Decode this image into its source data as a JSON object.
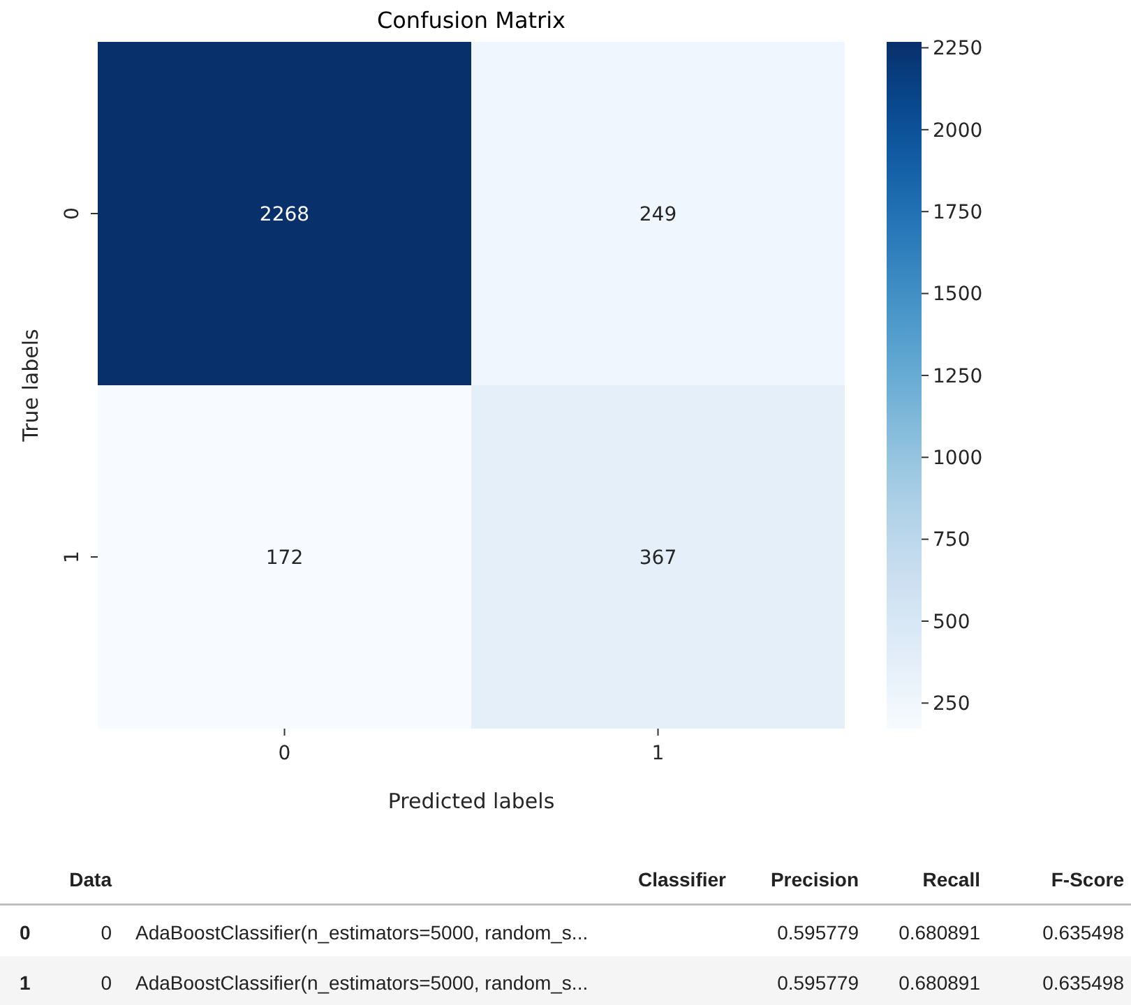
{
  "chart_data": [
    {
      "type": "heatmap",
      "title": "Confusion Matrix",
      "xlabel": "Predicted labels",
      "ylabel": "True labels",
      "categories": [
        "0",
        "1"
      ],
      "y_categories": [
        "0",
        "1"
      ],
      "cells": [
        [
          2268,
          249
        ],
        [
          172,
          367
        ]
      ],
      "data_labels": true,
      "clim": [
        172,
        2268
      ],
      "cticks": [
        250,
        500,
        750,
        1000,
        1250,
        1500,
        1750,
        2000,
        2250
      ]
    },
    {
      "type": "other",
      "categories": [
        "Data",
        "Classifier",
        "Precision",
        "Recall",
        "F-Score"
      ],
      "y_categories": [
        "0",
        "1"
      ],
      "cell_labels": [
        [
          "0",
          "AdaBoostClassifier(n_estimators=5000, random_s...",
          "0.595779",
          "0.680891",
          "0.635498"
        ],
        [
          "0",
          "AdaBoostClassifier(n_estimators=5000, random_s...",
          "0.595779",
          "0.680891",
          "0.635498"
        ]
      ]
    }
  ]
}
